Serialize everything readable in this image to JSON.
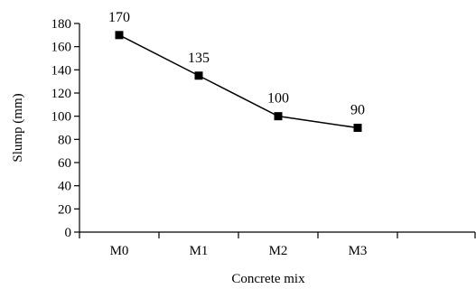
{
  "chart_data": {
    "type": "line",
    "categories": [
      "M0",
      "M1",
      "M2",
      "M3"
    ],
    "series": [
      {
        "values": [
          170,
          135,
          100,
          90
        ]
      }
    ],
    "data_labels": [
      "170",
      "135",
      "100",
      "90"
    ],
    "xlabel": "Concrete mix",
    "ylabel": "Slump (mm)",
    "ylim": [
      0,
      180
    ],
    "yticks": [
      0,
      20,
      40,
      60,
      80,
      100,
      120,
      140,
      160,
      180
    ],
    "grid": false,
    "marker": "square",
    "line_color": "#000000"
  }
}
